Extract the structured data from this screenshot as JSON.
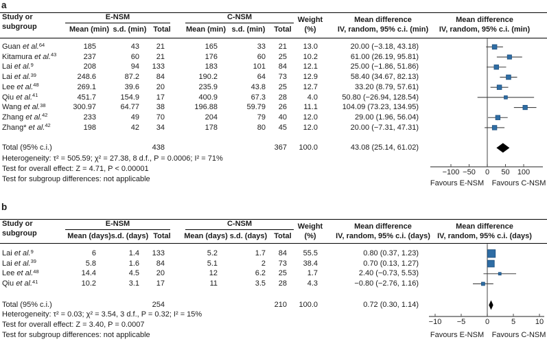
{
  "colors": {
    "marker_fill": "#2e6da4",
    "marker_stroke": "#1d4f7e",
    "ci_line": "#404040",
    "diamond": "#000000",
    "axis": "#4d4d4d",
    "zero_line": "#6e6e6e",
    "rule": "#000000",
    "text": "#1a1a1a"
  },
  "chart_data": [
    {
      "type": "forest",
      "panel_label": "a",
      "unit": "min",
      "headers": {
        "study_line1": "Study or",
        "study_line2": "subgroup",
        "group1": "E-NSM",
        "group2": "C-NSM",
        "mean": "Mean (min)",
        "sd": "s.d. (min)",
        "total": "Total",
        "weight_line1": "Weight",
        "weight_line2": "(%)",
        "md_line1": "Mean difference",
        "md_line2": "IV, random, 95% c.i. (min)",
        "plot_line1": "Mean difference",
        "plot_line2": "IV, random, 95% c.i. (min)"
      },
      "rows": [
        {
          "study": "Guan",
          "etal": "et al.",
          "ref": "64",
          "e_mean": "185",
          "e_sd": "43",
          "e_total": "21",
          "c_mean": "165",
          "c_sd": "33",
          "c_total": "21",
          "weight": "13.0",
          "md_text": "20.00 (−3.18, 43.18)",
          "md": 20.0,
          "ci_low": -3.18,
          "ci_high": 43.18,
          "weight_pct": 13.0
        },
        {
          "study": "Kitamura",
          "etal": "et al.",
          "ref": "43",
          "e_mean": "237",
          "e_sd": "60",
          "e_total": "21",
          "c_mean": "176",
          "c_sd": "60",
          "c_total": "25",
          "weight": "10.2",
          "md_text": "61.00 (26.19, 95.81)",
          "md": 61.0,
          "ci_low": 26.19,
          "ci_high": 95.81,
          "weight_pct": 10.2
        },
        {
          "study": "Lai",
          "etal": "et al.",
          "ref": "9",
          "e_mean": "208",
          "e_sd": "94",
          "e_total": "133",
          "c_mean": "183",
          "c_sd": "101",
          "c_total": "84",
          "weight": "12.1",
          "md_text": "25.00 (−1.86, 51.86)",
          "md": 25.0,
          "ci_low": -1.86,
          "ci_high": 51.86,
          "weight_pct": 12.1
        },
        {
          "study": "Lai",
          "etal": "et al.",
          "ref": "39",
          "e_mean": "248.6",
          "e_sd": "87.2",
          "e_total": "84",
          "c_mean": "190.2",
          "c_sd": "64",
          "c_total": "73",
          "weight": "12.9",
          "md_text": "58.40 (34.67, 82.13)",
          "md": 58.4,
          "ci_low": 34.67,
          "ci_high": 82.13,
          "weight_pct": 12.9
        },
        {
          "study": "Lee",
          "etal": "et al.",
          "ref": "48",
          "e_mean": "269.1",
          "e_sd": "39.6",
          "e_total": "20",
          "c_mean": "235.9",
          "c_sd": "43.8",
          "c_total": "25",
          "weight": "12.7",
          "md_text": "33.20 (8.79, 57.61)",
          "md": 33.2,
          "ci_low": 8.79,
          "ci_high": 57.61,
          "weight_pct": 12.7
        },
        {
          "study": "Qiu",
          "etal": "et al.",
          "ref": "41",
          "e_mean": "451.7",
          "e_sd": "154.9",
          "e_total": "17",
          "c_mean": "400.9",
          "c_sd": "67.3",
          "c_total": "28",
          "weight": "4.0",
          "md_text": "50.80 (−26.94, 128.54)",
          "md": 50.8,
          "ci_low": -26.94,
          "ci_high": 128.54,
          "weight_pct": 4.0
        },
        {
          "study": "Wang",
          "etal": "et al.",
          "ref": "38",
          "e_mean": "300.97",
          "e_sd": "64.77",
          "e_total": "38",
          "c_mean": "196.88",
          "c_sd": "59.79",
          "c_total": "26",
          "weight": "11.1",
          "md_text": "104.09 (73.23, 134.95)",
          "md": 104.09,
          "ci_low": 73.23,
          "ci_high": 134.95,
          "weight_pct": 11.1
        },
        {
          "study": "Zhang",
          "etal": "et al.",
          "ref": "42",
          "e_mean": "233",
          "e_sd": "49",
          "e_total": "70",
          "c_mean": "204",
          "c_sd": "79",
          "c_total": "40",
          "weight": "12.0",
          "md_text": "29.00 (1.96, 56.04)",
          "md": 29.0,
          "ci_low": 1.96,
          "ci_high": 56.04,
          "weight_pct": 12.0
        },
        {
          "study": "Zhang*",
          "etal": "et al.",
          "ref": "42",
          "e_mean": "198",
          "e_sd": "42",
          "e_total": "34",
          "c_mean": "178",
          "c_sd": "80",
          "c_total": "45",
          "weight": "12.0",
          "md_text": "20.00 (−7.31, 47.31)",
          "md": 20.0,
          "ci_low": -7.31,
          "ci_high": 47.31,
          "weight_pct": 12.0
        }
      ],
      "total": {
        "label": "Total (95% c.i.)",
        "e_total": "438",
        "c_total": "367",
        "weight": "100.0",
        "md_text": "43.08 (25.14, 61.02)",
        "md": 43.08,
        "ci_low": 25.14,
        "ci_high": 61.02
      },
      "footnotes": [
        "Heterogeneity: τ² = 505.59; χ² = 27.38, 8 d.f., P = 0.0006; I² = 71%",
        "Test for overall effect: Z = 4.71, P < 0.00001",
        "Test for subgroup differences: not applicable"
      ],
      "axis": {
        "tick_values": [
          -100,
          -50,
          0,
          50,
          100
        ],
        "tick_labels": [
          "−100",
          "−50",
          "0",
          "50",
          "100"
        ],
        "min": -153,
        "max": 153,
        "favours_left": "Favours E-NSM",
        "favours_right": "Favours C-NSM"
      }
    },
    {
      "type": "forest",
      "panel_label": "b",
      "unit": "days",
      "headers": {
        "study_line1": "Study or",
        "study_line2": "subgroup",
        "group1": "E-NSM",
        "group2": "C-NSM",
        "mean": "Mean (days)",
        "sd": "s.d. (days)",
        "total": "Total",
        "weight_line1": "Weight",
        "weight_line2": "(%)",
        "md_line1": "Mean difference",
        "md_line2": "IV, random, 95% c.i. (days)",
        "plot_line1": "Mean difference",
        "plot_line2": "IV, random, 95% c.i. (days)"
      },
      "rows": [
        {
          "study": "Lai",
          "etal": "et al.",
          "ref": "9",
          "e_mean": "6",
          "e_sd": "1.4",
          "e_total": "133",
          "c_mean": "5.2",
          "c_sd": "1.7",
          "c_total": "84",
          "weight": "55.5",
          "md_text": "0.80 (0.37, 1.23)",
          "md": 0.8,
          "ci_low": 0.37,
          "ci_high": 1.23,
          "weight_pct": 55.5
        },
        {
          "study": "Lai",
          "etal": "et al.",
          "ref": "39",
          "e_mean": "5.8",
          "e_sd": "1.6",
          "e_total": "84",
          "c_mean": "5.1",
          "c_sd": "2",
          "c_total": "73",
          "weight": "38.4",
          "md_text": "0.70 (0.13, 1.27)",
          "md": 0.7,
          "ci_low": 0.13,
          "ci_high": 1.27,
          "weight_pct": 38.4
        },
        {
          "study": "Lee",
          "etal": "et al.",
          "ref": "48",
          "e_mean": "14.4",
          "e_sd": "4.5",
          "e_total": "20",
          "c_mean": "12",
          "c_sd": "6.2",
          "c_total": "25",
          "weight": "1.7",
          "md_text": "2.40 (−0.73, 5.53)",
          "md": 2.4,
          "ci_low": -0.73,
          "ci_high": 5.53,
          "weight_pct": 1.7
        },
        {
          "study": "Qiu",
          "etal": "et al.",
          "ref": "41",
          "e_mean": "10.2",
          "e_sd": "3.1",
          "e_total": "17",
          "c_mean": "11",
          "c_sd": "3.5",
          "c_total": "28",
          "weight": "4.3",
          "md_text": "−0.80 (−2.76, 1.16)",
          "md": -0.8,
          "ci_low": -2.76,
          "ci_high": 1.16,
          "weight_pct": 4.3
        }
      ],
      "total": {
        "label": "Total (95% c.i.)",
        "e_total": "254",
        "c_total": "210",
        "weight": "100.0",
        "md_text": "0.72 (0.30, 1.14)",
        "md": 0.72,
        "ci_low": 0.3,
        "ci_high": 1.14
      },
      "footnotes": [
        "Heterogeneity: τ² = 0.03; χ² = 3.54, 3 d.f., P = 0.32; I² = 15%",
        "Test for overall effect: Z = 3.40, P = 0.0007",
        "Test for subgroup differences: not applicable"
      ],
      "axis": {
        "tick_values": [
          -10,
          -5,
          0,
          5,
          10
        ],
        "tick_labels": [
          "−10",
          "−5",
          "0",
          "5",
          "10"
        ],
        "min": -11.2,
        "max": 11.2,
        "favours_left": "Favours E-NSM",
        "favours_right": "Favours C-NSM"
      }
    }
  ]
}
